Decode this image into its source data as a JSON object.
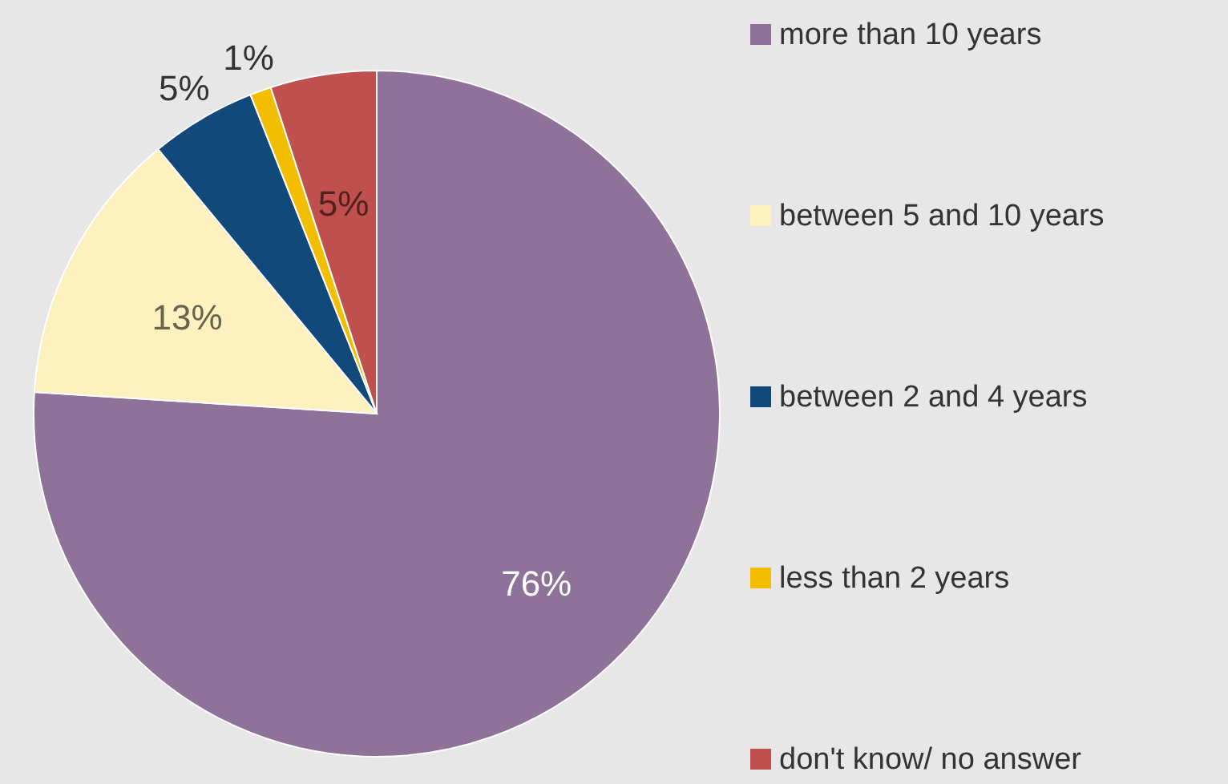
{
  "chart_data": {
    "type": "pie",
    "categories": [
      "more than 10 years",
      "between 5 and 10 years",
      "between 2 and 4 years",
      "less than 2 years",
      "don't know/ no answer"
    ],
    "values": [
      76,
      13,
      5,
      1,
      5
    ],
    "colors": [
      "#8f7299",
      "#fdf2bf",
      "#10497a",
      "#f3bd00",
      "#c0504d"
    ],
    "value_labels": [
      "76%",
      "13%",
      "5%",
      "1%",
      "5%"
    ],
    "legend": "right"
  }
}
